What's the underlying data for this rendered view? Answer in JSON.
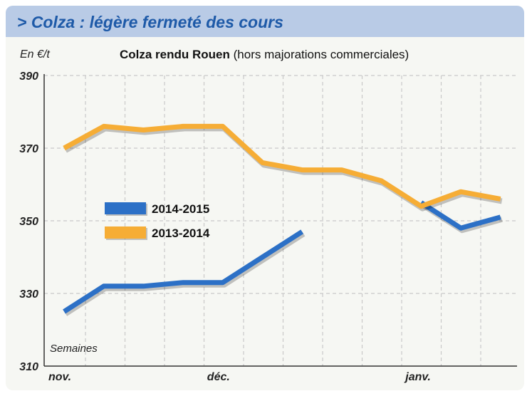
{
  "header": {
    "title": "> Colza : légère fermeté des cours"
  },
  "chart_data": {
    "type": "line",
    "title": "Colza rendu Rouen",
    "subtitle": "(hors majorations commerciales)",
    "ylabel": "En €/t",
    "xlabel": "Semaines",
    "ylim": [
      310,
      390
    ],
    "yticks": [
      310,
      330,
      350,
      370,
      390
    ],
    "x_tick_labels": [
      {
        "label": "nov.",
        "week": 0
      },
      {
        "label": "déc.",
        "week": 4
      },
      {
        "label": "janv.",
        "week": 9
      }
    ],
    "grid": true,
    "legend_position": "center-left",
    "series": [
      {
        "name": "2014-2015",
        "color": "#2c70c6",
        "x": [
          0,
          1,
          2,
          3,
          4,
          5,
          6
        ],
        "values": [
          325,
          332,
          332,
          333,
          333,
          340,
          347
        ]
      },
      {
        "name": "2014-2015",
        "color": "#2c70c6",
        "x": [
          9,
          10,
          11
        ],
        "values": [
          355,
          348,
          351
        ]
      },
      {
        "name": "2013-2014",
        "color": "#f6ad35",
        "x": [
          0,
          1,
          2,
          3,
          4,
          5,
          6,
          7,
          8,
          9,
          10,
          11
        ],
        "values": [
          370,
          376,
          375,
          376,
          376,
          366,
          364,
          364,
          361,
          354,
          358,
          356
        ]
      }
    ],
    "legend": [
      {
        "name": "2014-2015",
        "color": "#2c70c6"
      },
      {
        "name": "2013-2014",
        "color": "#f6ad35"
      }
    ]
  }
}
